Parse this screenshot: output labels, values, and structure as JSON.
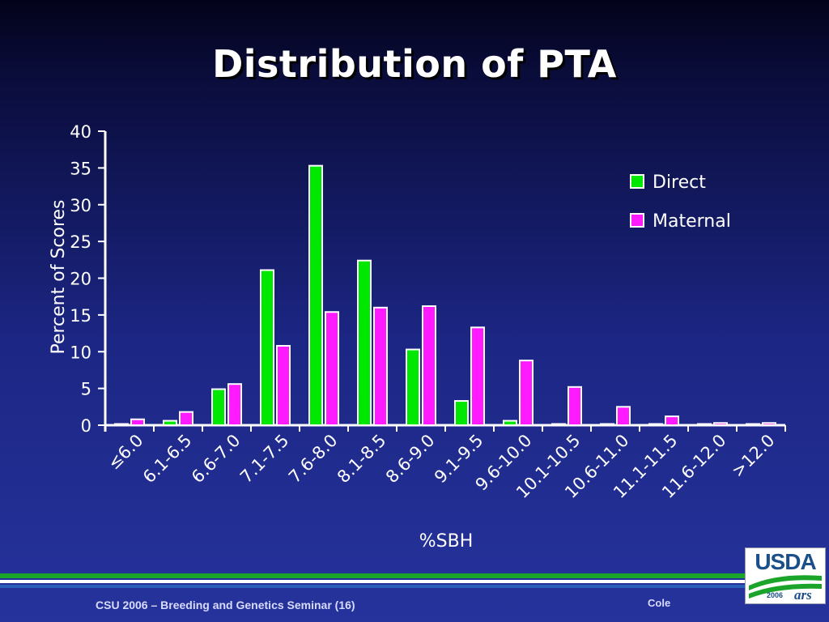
{
  "slide": {
    "title": "Distribution of PTA",
    "footer": "CSU 2006 – Breeding and Genetics Seminar (16)",
    "author": "Cole",
    "logo": {
      "text": "USDA",
      "year": "2006",
      "ars": "ars"
    },
    "colors": {
      "stripe_green": "#1aa52a",
      "stripe_white": "#ffffff",
      "stripe_blue": "#2a5fb8",
      "logo_blue": "#1b4f8a"
    }
  },
  "chart_data": {
    "type": "bar",
    "title": "",
    "xlabel": "%SBH",
    "ylabel": "Percent of Scores",
    "categories": [
      "≤6.0",
      "6.1-6.5",
      "6.6-7.0",
      "7.1-7.5",
      "7.6-8.0",
      "8.1-8.5",
      "8.6-9.0",
      "9.1-9.5",
      "9.6-10.0",
      "10.1-10.5",
      "10.6-11.0",
      "11.1-11.5",
      "11.6-12.0",
      ">12.0"
    ],
    "series": [
      {
        "name": "Direct",
        "color": "#00e800",
        "values": [
          0.1,
          0.6,
          4.9,
          21.1,
          35.3,
          22.4,
          10.3,
          3.3,
          0.6,
          0.1,
          0,
          0,
          0,
          0
        ]
      },
      {
        "name": "Maternal",
        "color": "#ff1aff",
        "values": [
          0.8,
          1.8,
          5.6,
          10.8,
          15.4,
          16.0,
          16.2,
          13.3,
          8.8,
          5.2,
          2.5,
          1.2,
          0.3,
          0.3
        ]
      }
    ],
    "ylim": [
      0,
      40
    ],
    "yticks": [
      0,
      5,
      10,
      15,
      20,
      25,
      30,
      35,
      40
    ],
    "legend_position": "top-right",
    "grid": false,
    "colors": {
      "axis": "#ffffff",
      "text": "#ffffff",
      "bar_outline": "#ffffff"
    }
  }
}
